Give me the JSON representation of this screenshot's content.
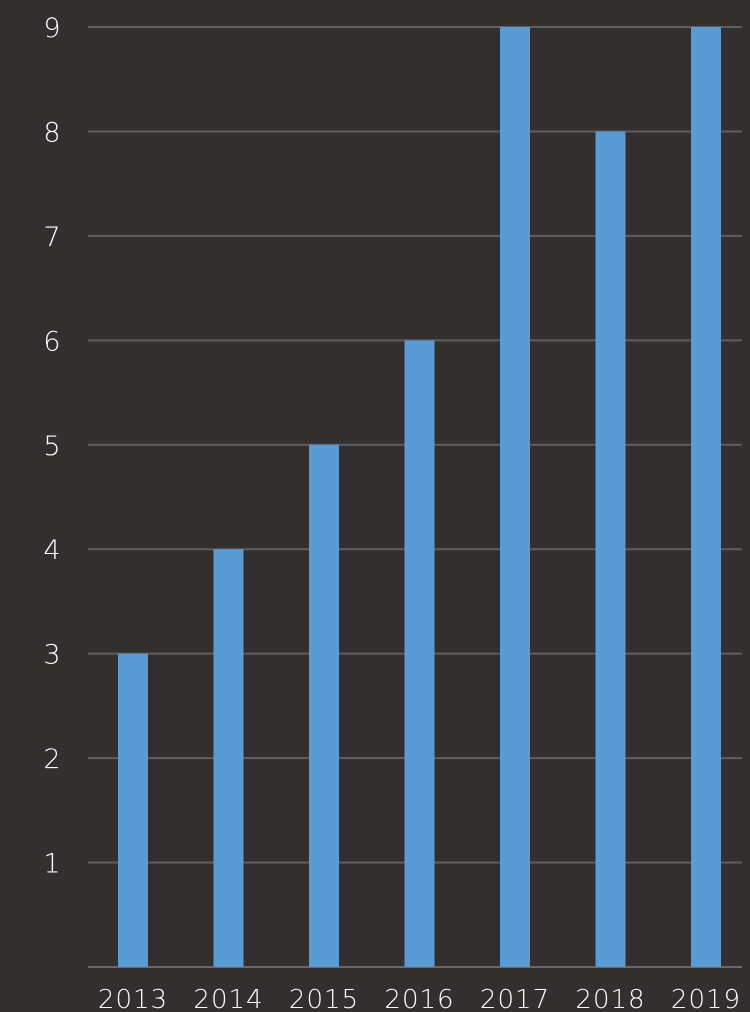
{
  "chart_data": {
    "type": "bar",
    "categories": [
      "2013",
      "2014",
      "2015",
      "2016",
      "2017",
      "2018",
      "2019"
    ],
    "values": [
      3,
      4,
      5,
      6,
      9,
      8,
      9
    ],
    "title": "",
    "xlabel": "",
    "ylabel": "",
    "ylim": [
      0,
      9
    ],
    "yticks": [
      "1",
      "2",
      "3",
      "4",
      "5",
      "6",
      "7",
      "8",
      "9"
    ],
    "grid": true,
    "legend": "none"
  },
  "colors": {
    "background": "#332f2f",
    "bar": "#5b9bd5",
    "grid": "#6b6666",
    "text": "#ffffff"
  }
}
